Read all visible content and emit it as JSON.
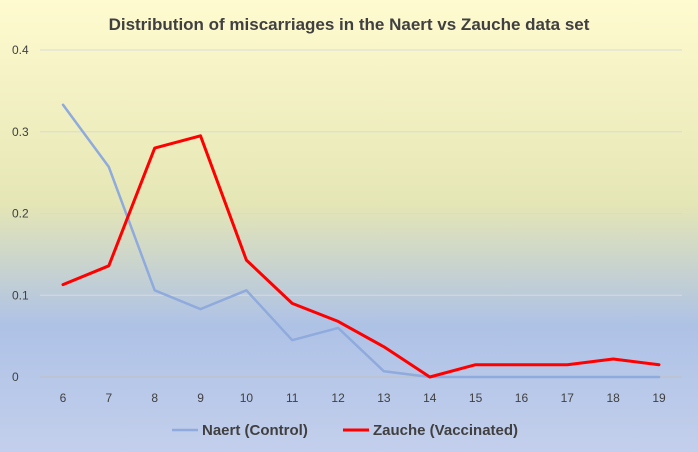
{
  "chart_data": {
    "type": "line",
    "title": "Distribution of miscarriages in the Naert vs Zauche data set",
    "xlabel": "",
    "ylabel": "",
    "x": [
      "6",
      "7",
      "8",
      "9",
      "10",
      "11",
      "12",
      "13",
      "14",
      "15",
      "16",
      "17",
      "18",
      "19"
    ],
    "ylim": [
      0,
      0.4
    ],
    "yticks": [
      "0",
      "0.1",
      "0.2",
      "0.3",
      "0.4"
    ],
    "ytick_values": [
      0,
      0.1,
      0.2,
      0.3,
      0.4
    ],
    "grid": true,
    "legend_position": "bottom",
    "series": [
      {
        "name": "Naert (Control)",
        "color": "#8FAADC",
        "values": [
          0.333,
          0.257,
          0.106,
          0.083,
          0.106,
          0.045,
          0.06,
          0.007,
          0.0,
          0.0,
          0.0,
          0.0,
          0.0,
          0.0
        ]
      },
      {
        "name": "Zauche (Vaccinated)",
        "color": "#FF0000",
        "values": [
          0.113,
          0.136,
          0.28,
          0.295,
          0.143,
          0.09,
          0.068,
          0.037,
          0.0,
          0.015,
          0.015,
          0.015,
          0.022,
          0.015
        ]
      }
    ]
  }
}
